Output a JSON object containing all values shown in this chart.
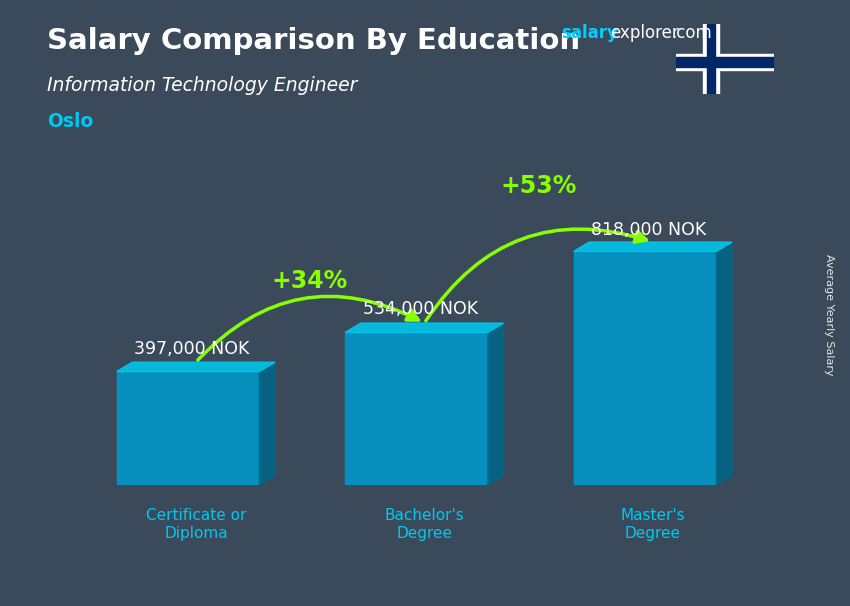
{
  "title": "Salary Comparison By Education",
  "subtitle": "Information Technology Engineer",
  "city": "Oslo",
  "ylabel": "Average Yearly Salary",
  "categories": [
    "Certificate or\nDiploma",
    "Bachelor's\nDegree",
    "Master's\nDegree"
  ],
  "values": [
    397000,
    534000,
    818000
  ],
  "value_labels": [
    "397,000 NOK",
    "534,000 NOK",
    "818,000 NOK"
  ],
  "pct_labels": [
    "+34%",
    "+53%"
  ],
  "bar_color_front": "#0099cc",
  "bar_color_top": "#00c8ee",
  "bar_color_side": "#006688",
  "bg_color": "#3a4a5a",
  "title_color": "#ffffff",
  "subtitle_color": "#ffffff",
  "city_color": "#00c8f0",
  "value_color": "#ffffff",
  "pct_color": "#88ff00",
  "xlabel_color": "#00c8f0",
  "arrow_color": "#88ff00",
  "brand_salary_color": "#00cfff",
  "brand_explorer_color": "#ffffff",
  "figsize": [
    8.5,
    6.06
  ],
  "dpi": 100
}
